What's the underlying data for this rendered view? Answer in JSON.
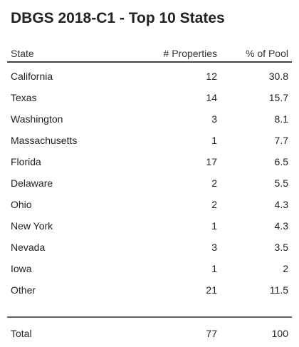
{
  "title": "DBGS 2018-C1 - Top 10 States",
  "columns": {
    "state": "State",
    "properties": "# Properties",
    "pool": "% of Pool"
  },
  "rows": [
    {
      "state": "California",
      "properties": "12",
      "pool": "30.8"
    },
    {
      "state": "Texas",
      "properties": "14",
      "pool": "15.7"
    },
    {
      "state": "Washington",
      "properties": "3",
      "pool": "8.1"
    },
    {
      "state": "Massachusetts",
      "properties": "1",
      "pool": "7.7"
    },
    {
      "state": "Florida",
      "properties": "17",
      "pool": "6.5"
    },
    {
      "state": "Delaware",
      "properties": "2",
      "pool": "5.5"
    },
    {
      "state": "Ohio",
      "properties": "2",
      "pool": "4.3"
    },
    {
      "state": "New York",
      "properties": "1",
      "pool": "4.3"
    },
    {
      "state": "Nevada",
      "properties": "3",
      "pool": "3.5"
    },
    {
      "state": "Iowa",
      "properties": "1",
      "pool": "2"
    },
    {
      "state": "Other",
      "properties": "21",
      "pool": "11.5"
    }
  ],
  "total": {
    "state": "Total",
    "properties": "77",
    "pool": "100"
  }
}
